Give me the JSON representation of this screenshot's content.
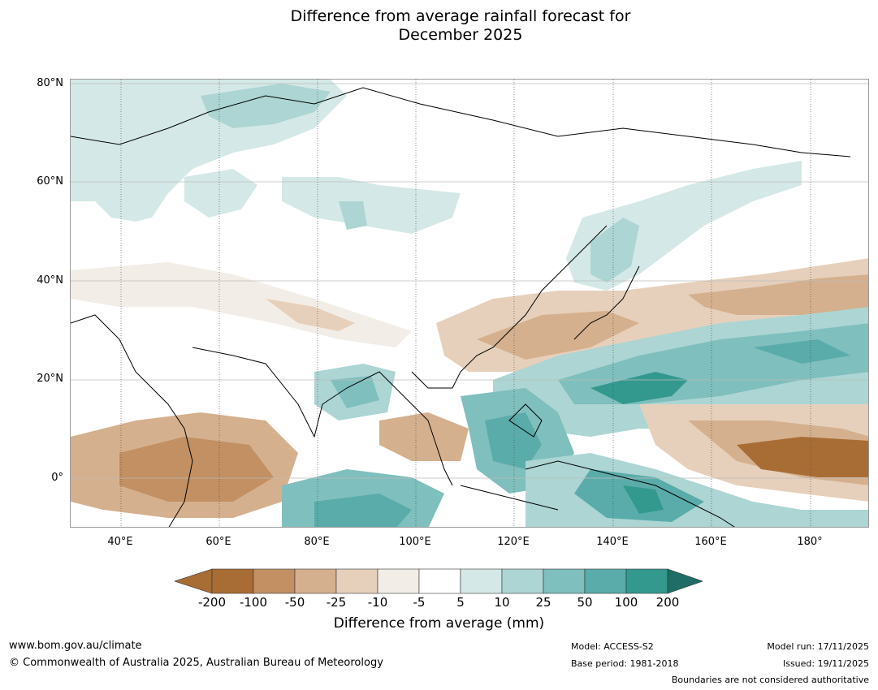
{
  "title_line1": "Difference from average rainfall forecast for",
  "title_line2": "December 2025",
  "lat_labels": [
    "80°N",
    "60°N",
    "40°N",
    "20°N",
    "0°"
  ],
  "lon_labels": [
    "40°E",
    "60°E",
    "80°E",
    "100°E",
    "120°E",
    "140°E",
    "160°E",
    "180°"
  ],
  "colorbar": {
    "labels": [
      "-200",
      "-100",
      "-50",
      "-25",
      "-10",
      "-5",
      "5",
      "10",
      "25",
      "50",
      "100",
      "200"
    ],
    "colors": [
      "#a86d35",
      "#c29063",
      "#d5b08e",
      "#e6d0bb",
      "#f2ede6",
      "#ffffff",
      "#d4e9e7",
      "#acd5d3",
      "#7fbfbd",
      "#5aacaa",
      "#33998f",
      "#1f6d66"
    ],
    "title": "Difference from average (mm)"
  },
  "footer": {
    "website": "www.bom.gov.au/climate",
    "copyright": "© Commonwealth of Australia 2025, Australian Bureau of Meteorology",
    "model": "Model: ACCESS-S2",
    "base_period": "Base period: 1981-2018",
    "model_run": "Model run: 17/11/2025",
    "issued": "Issued: 19/11/2025",
    "disclaimer": "Boundaries are not considered authoritative"
  }
}
